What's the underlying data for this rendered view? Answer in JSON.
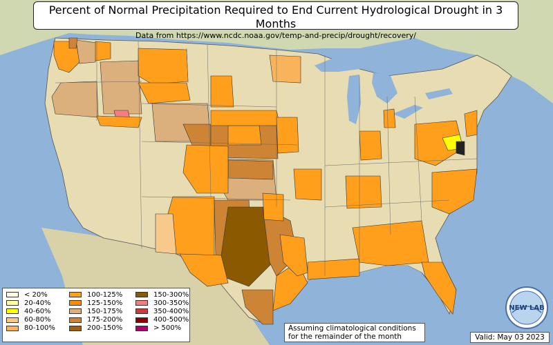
{
  "title": "Percent of Normal Precipitation Required to End Current Hydrological Drought in 3 Months",
  "subtitle": "Data from https://www.ncdc.noaa.gov/temp-and-precip/drought/recovery/",
  "legend": {
    "col1": [
      {
        "label": "< 20%",
        "color": "#ffffe0"
      },
      {
        "label": "20-40%",
        "color": "#ffffa0"
      },
      {
        "label": "40-60%",
        "color": "#ffff00"
      },
      {
        "label": "60-80%",
        "color": "#f7c98a"
      },
      {
        "label": "80-100%",
        "color": "#f9b35a"
      }
    ],
    "col2": [
      {
        "label": "100-125%",
        "color": "#ff9f1c"
      },
      {
        "label": "125-150%",
        "color": "#ff8c00"
      },
      {
        "label": "150-175%",
        "color": "#dcb07c"
      },
      {
        "label": "175-200%",
        "color": "#cd8535"
      },
      {
        "label": "200-150%",
        "color": "#a06010"
      }
    ],
    "col3": [
      {
        "label": "150-300%",
        "color": "#8b5a00"
      },
      {
        "label": "300-350%",
        "color": "#f08080"
      },
      {
        "label": "350-400%",
        "color": "#cd3c3c"
      },
      {
        "label": "400-500%",
        "color": "#8b0000"
      },
      {
        "label": "> 500%",
        "color": "#b0006e"
      }
    ]
  },
  "note": {
    "line1": "Assuming climatological conditions",
    "line2": "for the remainder of the month"
  },
  "valid": "Valid: May 03 2023",
  "logo_text": "NEW LAB",
  "colors": {
    "ocean": "#8fb3d9",
    "land": "#e8dcb2",
    "canada": "#cfd8b0"
  }
}
